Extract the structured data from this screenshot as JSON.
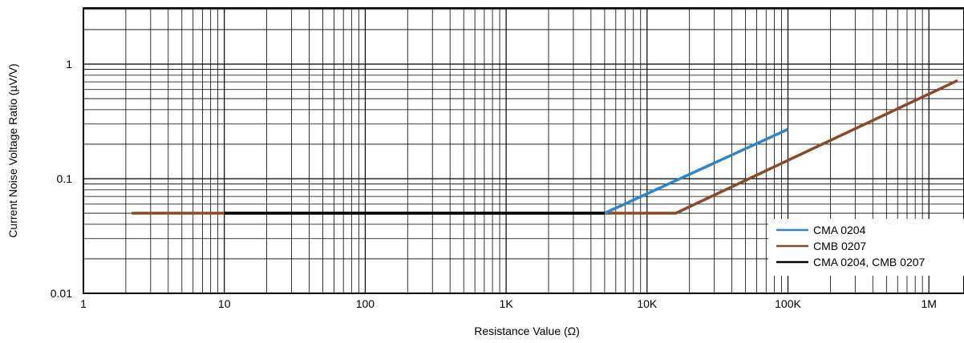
{
  "chart_data": {
    "type": "line",
    "xscale": "log",
    "yscale": "log",
    "xlim": [
      1,
      1800000
    ],
    "ylim": [
      0.01,
      3
    ],
    "xlabel": "Resistance Value (Ω)",
    "ylabel": "Current Noise Voltage Ratio (µV/V)",
    "x_ticks": [
      {
        "value": 1,
        "label": "1"
      },
      {
        "value": 10,
        "label": "10"
      },
      {
        "value": 100,
        "label": "100"
      },
      {
        "value": 1000,
        "label": "1K"
      },
      {
        "value": 10000,
        "label": "10K"
      },
      {
        "value": 100000,
        "label": "100K"
      },
      {
        "value": 1000000,
        "label": "1M"
      }
    ],
    "y_ticks": [
      {
        "value": 0.01,
        "label": "0.01"
      },
      {
        "value": 0.1,
        "label": "0.1"
      },
      {
        "value": 1,
        "label": "1"
      }
    ],
    "grid": true,
    "legend_position": "bottom-right",
    "series": [
      {
        "name": "CMB 0207",
        "color": "#8B4A25",
        "points": [
          [
            2.2,
            0.05
          ],
          [
            16000,
            0.05
          ],
          [
            1600000,
            0.72
          ]
        ]
      },
      {
        "name": "CMA 0204",
        "color": "#2E86C8",
        "points": [
          [
            5000,
            0.05
          ],
          [
            100000,
            0.27
          ]
        ]
      },
      {
        "name": "CMA 0204, CMB 0207",
        "color": "#000000",
        "points": [
          [
            10,
            0.05
          ],
          [
            5000,
            0.05
          ]
        ]
      }
    ],
    "legend": [
      {
        "label": "CMA 0204",
        "color": "#2E86C8"
      },
      {
        "label": "CMB 0207",
        "color": "#8B4A25"
      },
      {
        "label": "CMA 0204, CMB 0207",
        "color": "#000000"
      }
    ]
  }
}
